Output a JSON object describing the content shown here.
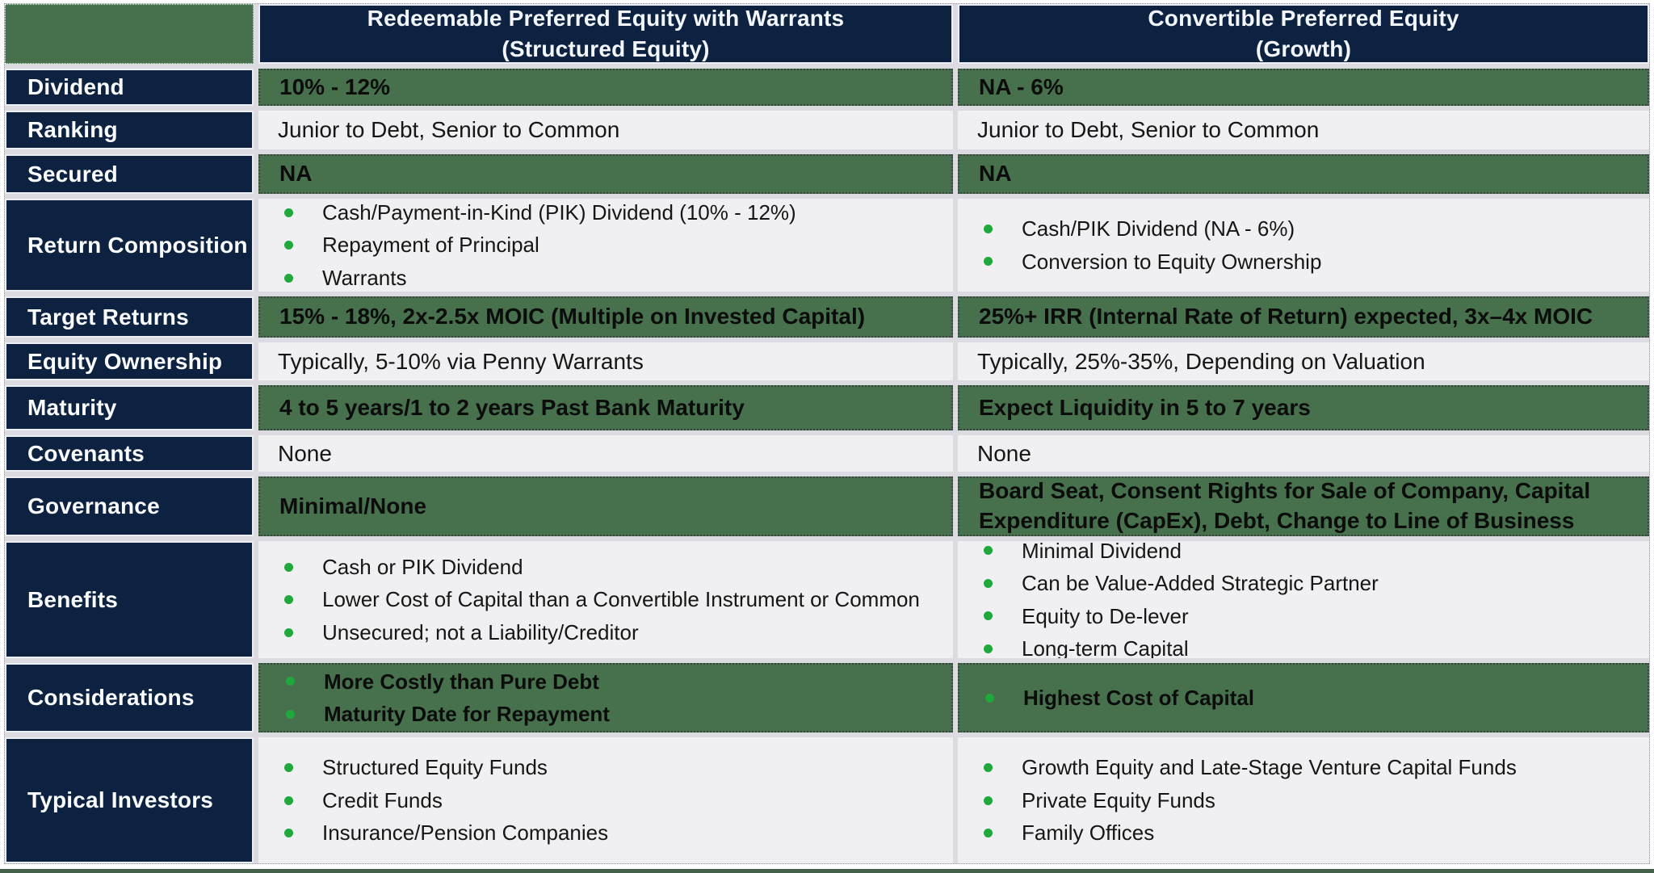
{
  "colors": {
    "navy": "#0c2240",
    "green_row": "#47704d",
    "light_row": "#f0eff1",
    "bullet_green": "#1fa83c",
    "bottom_bar": "#44604b",
    "header_text": "#f3f6fc"
  },
  "header": {
    "col2_line1": "Redeemable Preferred Equity with Warrants",
    "col2_line2": "(Structured Equity)",
    "col3_line1": "Convertible Preferred Equity",
    "col3_line2": "(Growth)"
  },
  "rows": [
    {
      "label": "Dividend",
      "left_text": "10% - 12%",
      "right_text": "NA - 6%"
    },
    {
      "label": "Ranking",
      "left_text": "Junior to Debt, Senior to Common",
      "right_text": "Junior to Debt, Senior to Common"
    },
    {
      "label": "Secured",
      "left_text": "NA",
      "right_text": "NA"
    },
    {
      "label": "Return Composition",
      "left_items": [
        "Cash/Payment-in-Kind (PIK) Dividend (10% - 12%)",
        "Repayment of Principal",
        "Warrants"
      ],
      "right_items": [
        "Cash/PIK Dividend (NA - 6%)",
        "Conversion to Equity Ownership"
      ]
    },
    {
      "label": "Target Returns",
      "left_text": "15% - 18%, 2x-2.5x MOIC (Multiple on Invested Capital)",
      "right_text": "25%+ IRR (Internal Rate of Return) expected, 3x–4x MOIC"
    },
    {
      "label": "Equity Ownership",
      "left_text": "Typically, 5-10% via Penny Warrants",
      "right_text": "Typically, 25%-35%, Depending on Valuation"
    },
    {
      "label": "Maturity",
      "left_text": "4 to 5 years/1 to 2 years Past Bank Maturity",
      "right_text": "Expect Liquidity in 5 to 7 years"
    },
    {
      "label": "Covenants",
      "left_text": "None",
      "right_text": "None"
    },
    {
      "label": "Governance",
      "left_text": "Minimal/None",
      "right_text": "Board Seat, Consent Rights for Sale of Company, Capital Expenditure (CapEx), Debt, Change to Line of Business"
    },
    {
      "label": "Benefits",
      "left_items": [
        "Cash or PIK Dividend",
        "Lower Cost of Capital than a Convertible Instrument or Common",
        "Unsecured; not a Liability/Creditor"
      ],
      "right_items": [
        "Minimal Dividend",
        "Can be Value-Added Strategic Partner",
        "Equity to De-lever",
        "Long-term Capital"
      ]
    },
    {
      "label": "Considerations",
      "left_items": [
        "More Costly than Pure Debt",
        "Maturity Date for Repayment"
      ],
      "right_items": [
        "Highest Cost of Capital"
      ]
    },
    {
      "label": "Typical Investors",
      "left_items": [
        "Structured Equity Funds",
        "Credit Funds",
        "Insurance/Pension Companies"
      ],
      "right_items": [
        "Growth Equity and Late-Stage Venture Capital Funds",
        "Private Equity Funds",
        "Family Offices"
      ]
    }
  ]
}
